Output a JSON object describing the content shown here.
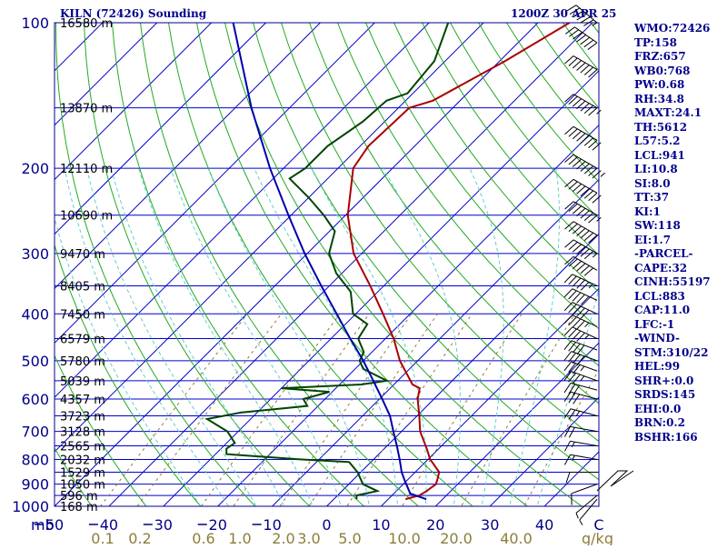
{
  "header": {
    "station": "KILN (72426) Sounding",
    "time": "1200Z 30 APR 25"
  },
  "indices": [
    "WMO:72426",
    "TP:158",
    "FRZ:657",
    "WB0:768",
    "PW:0.68",
    "RH:34.8",
    "MAXT:24.1",
    "TH:5612",
    "L57:5.2",
    "LCL:941",
    "LI:10.8",
    "SI:8.0",
    "TT:37",
    "KI:1",
    "SW:118",
    "EI:1.7",
    "-PARCEL-",
    "CAPE:32",
    "CINH:55197",
    "LCL:883",
    "CAP:11.0",
    "LFC:-1",
    "-WIND-",
    "STM:310/22",
    "HEL:99",
    "SHR+:0.0",
    "SRDS:145",
    "EHI:0.0",
    "BRN:0.2",
    "BSHR:166"
  ],
  "colors": {
    "frame": "#00008b",
    "isotherm": "#0000cc",
    "dry_adiabat": "#22aa22",
    "moist_adiabat": "#66cccc",
    "mixing_ratio": "#8b7d3a",
    "temperature": "#aa0000",
    "dewpoint": "#004400",
    "parcel": "#0000aa",
    "axis_text": "#000088",
    "mixing_text": "#8b7d3a"
  },
  "chart_data": {
    "type": "line",
    "title": "KILN (72426) Sounding 1200Z 30 APR 25",
    "xlabel": "C",
    "ylabel": "mb",
    "x_unit_label": "C",
    "y_unit_label": "mb",
    "mixing_unit_label": "g/kg",
    "xlim": [
      -50,
      50
    ],
    "ylim": [
      1000,
      100
    ],
    "y_scale": "log",
    "pressure_ticks": [
      "100",
      "200",
      "300",
      "400",
      "500",
      "600",
      "700",
      "800",
      "900",
      "1000"
    ],
    "temp_ticks": [
      "50",
      "40",
      "30",
      "20",
      "10",
      "0",
      "10",
      "20",
      "30",
      "40"
    ],
    "mixing_ratio_labels": [
      "0.1",
      "0.2",
      "0.6",
      "1.0",
      "2.0",
      "3.0",
      "5.0",
      "10.0",
      "20.0",
      "40.0"
    ],
    "mixing_ratio_values": [
      0.1,
      0.2,
      0.6,
      1.0,
      2.0,
      3.0,
      5.0,
      10.0,
      20.0,
      40.0
    ],
    "height_labels": [
      {
        "p": 100,
        "label": "16580 m"
      },
      {
        "p": 150,
        "label": "13870 m"
      },
      {
        "p": 200,
        "label": "12110 m"
      },
      {
        "p": 250,
        "label": "10690 m"
      },
      {
        "p": 300,
        "label": "9470 m"
      },
      {
        "p": 350,
        "label": "8405 m"
      },
      {
        "p": 400,
        "label": "7450 m"
      },
      {
        "p": 450,
        "label": "6579 m"
      },
      {
        "p": 500,
        "label": "5780 m"
      },
      {
        "p": 550,
        "label": "5039 m"
      },
      {
        "p": 600,
        "label": "4357 m"
      },
      {
        "p": 650,
        "label": "3723 m"
      },
      {
        "p": 700,
        "label": "3128 m"
      },
      {
        "p": 750,
        "label": "2565 m"
      },
      {
        "p": 800,
        "label": "2032 m"
      },
      {
        "p": 850,
        "label": "1529 m"
      },
      {
        "p": 900,
        "label": "1050 m"
      },
      {
        "p": 950,
        "label": "596 m"
      },
      {
        "p": 1000,
        "label": "168 m"
      }
    ],
    "series": [
      {
        "key": "temperature",
        "points": [
          [
            967,
            13.2
          ],
          [
            950,
            15.0
          ],
          [
            930,
            15.6
          ],
          [
            925,
            15.6
          ],
          [
            900,
            16.0
          ],
          [
            880,
            15.4
          ],
          [
            850,
            14.4
          ],
          [
            800,
            10.4
          ],
          [
            760,
            7.8
          ],
          [
            700,
            3.4
          ],
          [
            650,
            0.4
          ],
          [
            600,
            -3.0
          ],
          [
            570,
            -4.6
          ],
          [
            560,
            -6.6
          ],
          [
            500,
            -13.3
          ],
          [
            450,
            -18.5
          ],
          [
            400,
            -25.0
          ],
          [
            350,
            -32.5
          ],
          [
            300,
            -41.5
          ],
          [
            250,
            -49.6
          ],
          [
            200,
            -57.2
          ],
          [
            180,
            -58.5
          ],
          [
            150,
            -58.0
          ],
          [
            145,
            -55.0
          ],
          [
            120,
            -49.0
          ],
          [
            100,
            -44.2
          ]
        ]
      },
      {
        "key": "dewpoint",
        "points": [
          [
            967,
            4.2
          ],
          [
            950,
            3.5
          ],
          [
            930,
            6.5
          ],
          [
            900,
            2.6
          ],
          [
            850,
            -0.6
          ],
          [
            810,
            -4.0
          ],
          [
            800,
            -13.5
          ],
          [
            780,
            -28.0
          ],
          [
            760,
            -29.0
          ],
          [
            740,
            -28.5
          ],
          [
            700,
            -32.0
          ],
          [
            660,
            -38.0
          ],
          [
            640,
            -33.0
          ],
          [
            620,
            -22.0
          ],
          [
            600,
            -24.0
          ],
          [
            580,
            -20.5
          ],
          [
            570,
            -30.0
          ],
          [
            560,
            -16.0
          ],
          [
            550,
            -12.0
          ],
          [
            520,
            -18.5
          ],
          [
            500,
            -20.7
          ],
          [
            480,
            -21.5
          ],
          [
            450,
            -25.0
          ],
          [
            420,
            -26.0
          ],
          [
            400,
            -30.5
          ],
          [
            360,
            -35.0
          ],
          [
            330,
            -41.0
          ],
          [
            300,
            -46.0
          ],
          [
            270,
            -49.0
          ],
          [
            250,
            -54.0
          ],
          [
            230,
            -60.0
          ],
          [
            210,
            -67.0
          ],
          [
            200,
            -66.0
          ],
          [
            180,
            -66.0
          ],
          [
            160,
            -64.0
          ],
          [
            145,
            -63.5
          ],
          [
            140,
            -61.0
          ],
          [
            120,
            -62.0
          ],
          [
            100,
            -66.5
          ]
        ]
      },
      {
        "key": "parcel",
        "points": [
          [
            967,
            17.0
          ],
          [
            941,
            13.0
          ],
          [
            883,
            9.5
          ],
          [
            850,
            7.5
          ],
          [
            800,
            4.8
          ],
          [
            750,
            1.8
          ],
          [
            700,
            -1.5
          ],
          [
            650,
            -5.0
          ],
          [
            600,
            -9.5
          ],
          [
            550,
            -14.5
          ],
          [
            500,
            -20.0
          ],
          [
            450,
            -26.5
          ],
          [
            400,
            -33.5
          ],
          [
            350,
            -41.5
          ],
          [
            300,
            -50.5
          ],
          [
            250,
            -60.5
          ],
          [
            200,
            -72.5
          ],
          [
            150,
            -87.0
          ],
          [
            100,
            -106.0
          ]
        ]
      }
    ],
    "wind_barbs": [
      {
        "p": 100,
        "dir": 310,
        "spd": 65
      },
      {
        "p": 110,
        "dir": 305,
        "spd": 70
      },
      {
        "p": 125,
        "dir": 300,
        "spd": 70
      },
      {
        "p": 150,
        "dir": 300,
        "spd": 75
      },
      {
        "p": 175,
        "dir": 300,
        "spd": 80
      },
      {
        "p": 200,
        "dir": 300,
        "spd": 85
      },
      {
        "p": 225,
        "dir": 300,
        "spd": 80
      },
      {
        "p": 250,
        "dir": 300,
        "spd": 75
      },
      {
        "p": 275,
        "dir": 300,
        "spd": 70
      },
      {
        "p": 300,
        "dir": 300,
        "spd": 65
      },
      {
        "p": 325,
        "dir": 300,
        "spd": 60
      },
      {
        "p": 350,
        "dir": 295,
        "spd": 55
      },
      {
        "p": 375,
        "dir": 295,
        "spd": 50
      },
      {
        "p": 400,
        "dir": 295,
        "spd": 50
      },
      {
        "p": 425,
        "dir": 295,
        "spd": 45
      },
      {
        "p": 450,
        "dir": 295,
        "spd": 45
      },
      {
        "p": 475,
        "dir": 290,
        "spd": 40
      },
      {
        "p": 500,
        "dir": 290,
        "spd": 40
      },
      {
        "p": 525,
        "dir": 290,
        "spd": 35
      },
      {
        "p": 550,
        "dir": 290,
        "spd": 35
      },
      {
        "p": 575,
        "dir": 285,
        "spd": 30
      },
      {
        "p": 600,
        "dir": 285,
        "spd": 30
      },
      {
        "p": 650,
        "dir": 285,
        "spd": 25
      },
      {
        "p": 700,
        "dir": 280,
        "spd": 20
      },
      {
        "p": 750,
        "dir": 280,
        "spd": 15
      },
      {
        "p": 800,
        "dir": 280,
        "spd": 15
      },
      {
        "p": 850,
        "dir": 270,
        "spd": 10
      },
      {
        "p": 900,
        "dir": 250,
        "spd": 10
      },
      {
        "p": 950,
        "dir": 230,
        "spd": 5
      },
      {
        "p": 967,
        "dir": 220,
        "spd": 5
      }
    ]
  }
}
